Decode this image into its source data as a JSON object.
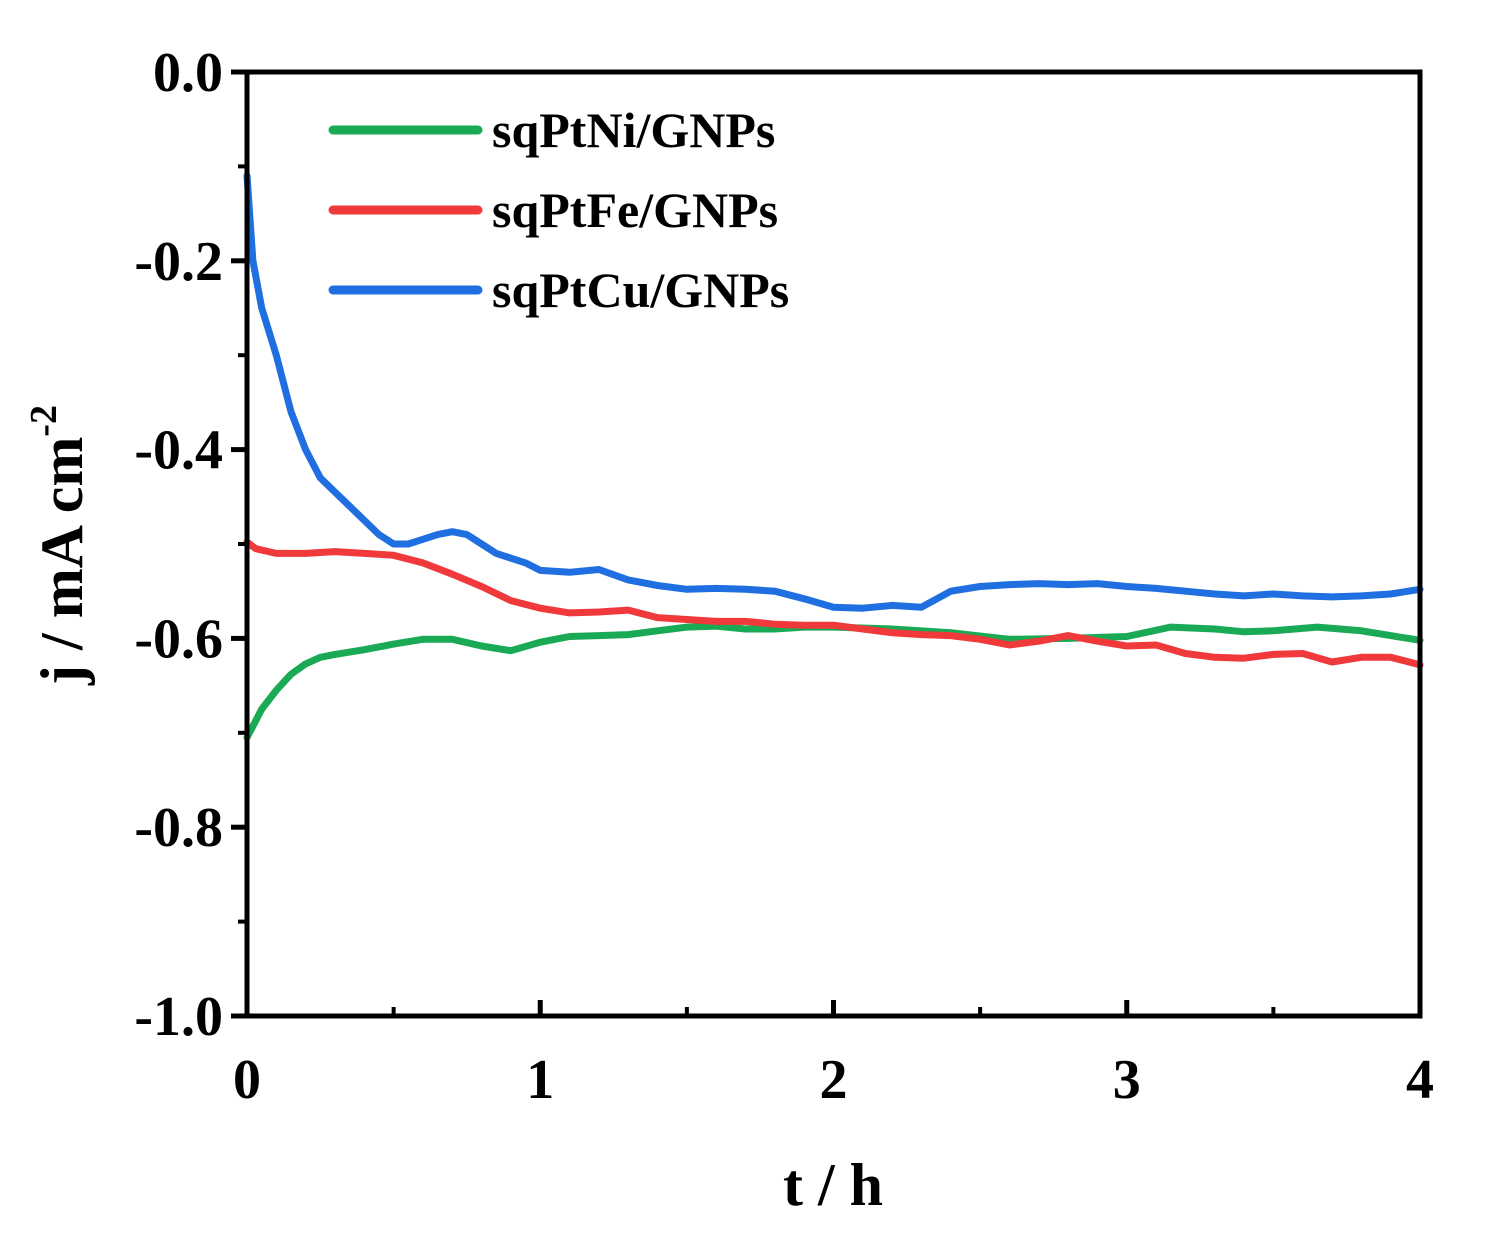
{
  "chart_data": {
    "type": "line",
    "xlabel": "t / h",
    "ylabel_main": "j / mA cm",
    "ylabel_sup": "-2",
    "xlim": [
      0,
      4
    ],
    "ylim": [
      -1.0,
      0.0
    ],
    "x_ticks": [
      0,
      1,
      2,
      3,
      4
    ],
    "x_tick_labels": [
      "0",
      "1",
      "2",
      "3",
      "4"
    ],
    "y_ticks": [
      0.0,
      -0.2,
      -0.4,
      -0.6,
      -0.8,
      -1.0
    ],
    "y_tick_labels": [
      "0.0",
      "-0.2",
      "-0.4",
      "-0.6",
      "-0.8",
      "-1.0"
    ],
    "legend_position": "top-left",
    "grid": false,
    "series": [
      {
        "name": "sqPtNi/GNPs",
        "color": "#1aaa55",
        "x": [
          0,
          0.05,
          0.1,
          0.15,
          0.2,
          0.25,
          0.3,
          0.4,
          0.5,
          0.6,
          0.7,
          0.8,
          0.9,
          1.0,
          1.1,
          1.2,
          1.3,
          1.4,
          1.5,
          1.6,
          1.7,
          1.8,
          1.9,
          2.0,
          2.2,
          2.4,
          2.6,
          2.8,
          3.0,
          3.15,
          3.3,
          3.4,
          3.5,
          3.65,
          3.8,
          3.9,
          4.0
        ],
        "y": [
          -0.705,
          -0.675,
          -0.655,
          -0.638,
          -0.627,
          -0.62,
          -0.617,
          -0.612,
          -0.606,
          -0.601,
          -0.601,
          -0.608,
          -0.613,
          -0.604,
          -0.598,
          -0.597,
          -0.596,
          -0.592,
          -0.588,
          -0.587,
          -0.59,
          -0.59,
          -0.588,
          -0.588,
          -0.59,
          -0.594,
          -0.601,
          -0.6,
          -0.598,
          -0.588,
          -0.59,
          -0.593,
          -0.592,
          -0.588,
          -0.592,
          -0.597,
          -0.602
        ]
      },
      {
        "name": "sqPtFe/GNPs",
        "color": "#f0393a",
        "x": [
          0,
          0.03,
          0.1,
          0.2,
          0.3,
          0.4,
          0.5,
          0.6,
          0.7,
          0.8,
          0.9,
          1.0,
          1.1,
          1.2,
          1.3,
          1.4,
          1.5,
          1.6,
          1.7,
          1.8,
          1.9,
          2.0,
          2.1,
          2.2,
          2.3,
          2.4,
          2.5,
          2.6,
          2.7,
          2.8,
          2.9,
          3.0,
          3.1,
          3.2,
          3.3,
          3.4,
          3.5,
          3.6,
          3.7,
          3.8,
          3.9,
          4.0
        ],
        "y": [
          -0.498,
          -0.505,
          -0.51,
          -0.51,
          -0.508,
          -0.51,
          -0.512,
          -0.52,
          -0.532,
          -0.545,
          -0.56,
          -0.568,
          -0.573,
          -0.572,
          -0.57,
          -0.578,
          -0.58,
          -0.582,
          -0.582,
          -0.585,
          -0.586,
          -0.586,
          -0.59,
          -0.594,
          -0.596,
          -0.597,
          -0.601,
          -0.607,
          -0.603,
          -0.597,
          -0.603,
          -0.608,
          -0.607,
          -0.616,
          -0.62,
          -0.621,
          -0.617,
          -0.616,
          -0.625,
          -0.62,
          -0.62,
          -0.628
        ]
      },
      {
        "name": "sqPtCu/GNPs",
        "color": "#1f6fe0",
        "x": [
          0,
          0.02,
          0.05,
          0.1,
          0.15,
          0.2,
          0.25,
          0.3,
          0.35,
          0.4,
          0.45,
          0.5,
          0.55,
          0.6,
          0.65,
          0.7,
          0.75,
          0.8,
          0.85,
          0.9,
          0.95,
          1.0,
          1.1,
          1.2,
          1.3,
          1.4,
          1.5,
          1.6,
          1.7,
          1.8,
          1.9,
          2.0,
          2.1,
          2.2,
          2.3,
          2.4,
          2.5,
          2.6,
          2.7,
          2.8,
          2.9,
          3.0,
          3.1,
          3.2,
          3.3,
          3.4,
          3.5,
          3.6,
          3.7,
          3.8,
          3.9,
          4.0
        ],
        "y": [
          -0.11,
          -0.2,
          -0.25,
          -0.3,
          -0.36,
          -0.4,
          -0.43,
          -0.445,
          -0.46,
          -0.475,
          -0.49,
          -0.5,
          -0.5,
          -0.495,
          -0.49,
          -0.487,
          -0.49,
          -0.5,
          -0.51,
          -0.515,
          -0.52,
          -0.528,
          -0.53,
          -0.527,
          -0.538,
          -0.544,
          -0.548,
          -0.547,
          -0.548,
          -0.55,
          -0.558,
          -0.567,
          -0.568,
          -0.565,
          -0.567,
          -0.55,
          -0.545,
          -0.543,
          -0.542,
          -0.543,
          -0.542,
          -0.545,
          -0.547,
          -0.55,
          -0.553,
          -0.555,
          -0.553,
          -0.555,
          -0.556,
          -0.555,
          -0.553,
          -0.548
        ]
      }
    ]
  }
}
